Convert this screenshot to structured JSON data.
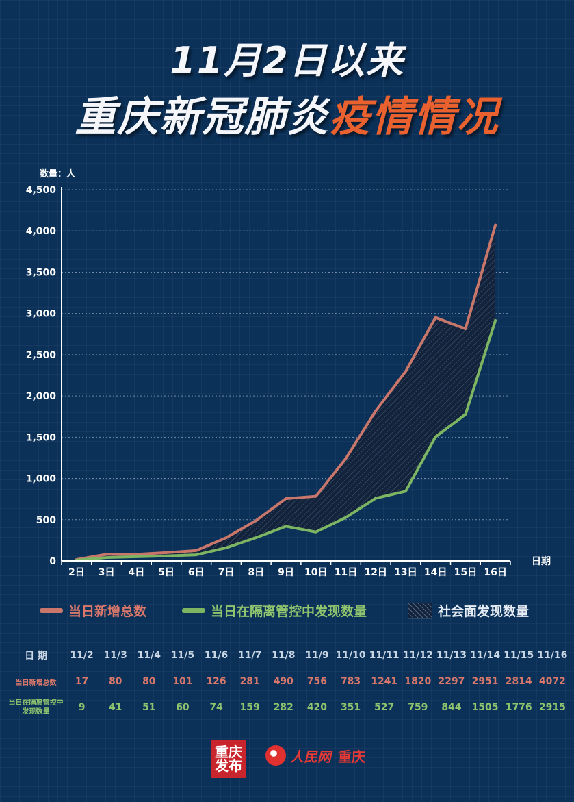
{
  "title": {
    "line1": "11月2日以来",
    "line2_main": "重庆新冠肺炎",
    "line2_highlight": "疫情情况"
  },
  "chart_data": {
    "type": "line",
    "ylabel": "数量：人",
    "xlabel": "日期",
    "ylim": [
      0,
      4500
    ],
    "yticks": [
      "0",
      "500",
      "1,000",
      "1,500",
      "2,000",
      "2,500",
      "3,000",
      "3,500",
      "4,000",
      "4,500"
    ],
    "categories": [
      "2日",
      "3日",
      "4日",
      "5日",
      "6日",
      "7日",
      "8日",
      "9日",
      "10日",
      "11日",
      "12日",
      "13日",
      "14日",
      "15日",
      "16日"
    ],
    "series": [
      {
        "name": "当日新增总数",
        "color": "#c9776b",
        "values": [
          17,
          80,
          80,
          101,
          126,
          281,
          490,
          756,
          783,
          1241,
          1820,
          2297,
          2951,
          2814,
          4072
        ]
      },
      {
        "name": "当日在隔离管控中发现数量",
        "color": "#7eb563",
        "values": [
          9,
          41,
          51,
          60,
          74,
          159,
          282,
          420,
          351,
          527,
          759,
          844,
          1505,
          1776,
          2915
        ]
      }
    ],
    "area_name": "社会面发现数量",
    "grid": true,
    "legend": "bottom"
  },
  "legend": {
    "total": "当日新增总数",
    "isolation": "当日在隔离管控中发现数量",
    "community": "社会面发现数量"
  },
  "table": {
    "date_label": "日 期",
    "total_label": "当日新增总数",
    "iso_label": "当日在隔离管控中发现数量",
    "dates": [
      "11/2",
      "11/3",
      "11/4",
      "11/5",
      "11/6",
      "11/7",
      "11/8",
      "11/9",
      "11/10",
      "11/11",
      "11/12",
      "11/13",
      "11/14",
      "11/15",
      "11/16"
    ],
    "totals": [
      "17",
      "80",
      "80",
      "101",
      "126",
      "281",
      "490",
      "756",
      "783",
      "1241",
      "1820",
      "2297",
      "2951",
      "2814",
      "4072"
    ],
    "isolation": [
      "9",
      "41",
      "51",
      "60",
      "74",
      "159",
      "282",
      "420",
      "351",
      "527",
      "759",
      "844",
      "1505",
      "1776",
      "2915"
    ]
  },
  "footer": {
    "logo1": "重庆发布",
    "brand": "人民网",
    "brand_city": "重庆"
  }
}
